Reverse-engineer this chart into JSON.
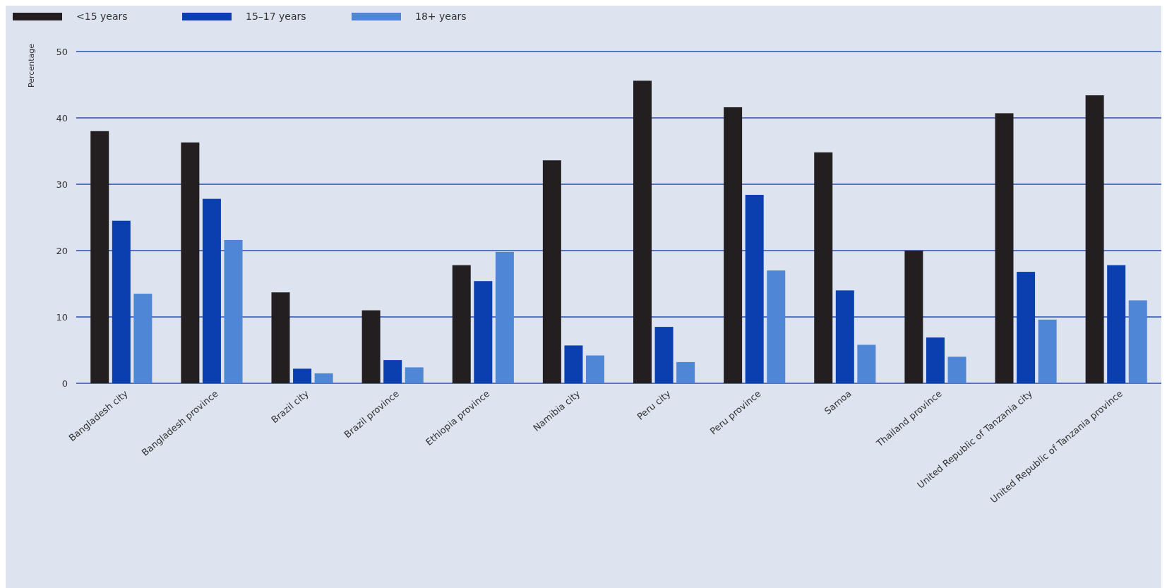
{
  "chart_data": {
    "type": "bar",
    "ylabel": "Percentage",
    "categories": [
      "Bangladesh city",
      "Bangladesh province",
      "Brazil city",
      "Brazil province",
      "Ethiopia province",
      "Namibia city",
      "Peru city",
      "Peru province",
      "Samoa",
      "Thailand province",
      "United Republic of Tanzania city",
      "United Republic of Tanzania province"
    ],
    "series": [
      {
        "name": "<15 years",
        "color": "#231f20",
        "values": [
          38,
          36.3,
          13.7,
          11,
          17.8,
          33.6,
          45.6,
          41.6,
          34.8,
          20,
          40.7,
          43.4
        ]
      },
      {
        "name": "15–17 years",
        "color": "#0b3fb0",
        "values": [
          24.5,
          27.8,
          2.2,
          3.5,
          15.4,
          5.7,
          8.5,
          28.4,
          14,
          6.9,
          16.8,
          17.8
        ]
      },
      {
        "name": "18+ years",
        "color": "#4f86d6",
        "values": [
          13.5,
          21.6,
          1.5,
          2.4,
          19.8,
          4.2,
          3.2,
          17,
          5.8,
          4,
          9.6,
          12.5
        ]
      }
    ],
    "ylim": [
      0,
      50
    ],
    "yticks": [
      0,
      10,
      20,
      30,
      40,
      50
    ],
    "grid": "y",
    "legend": "top left"
  }
}
